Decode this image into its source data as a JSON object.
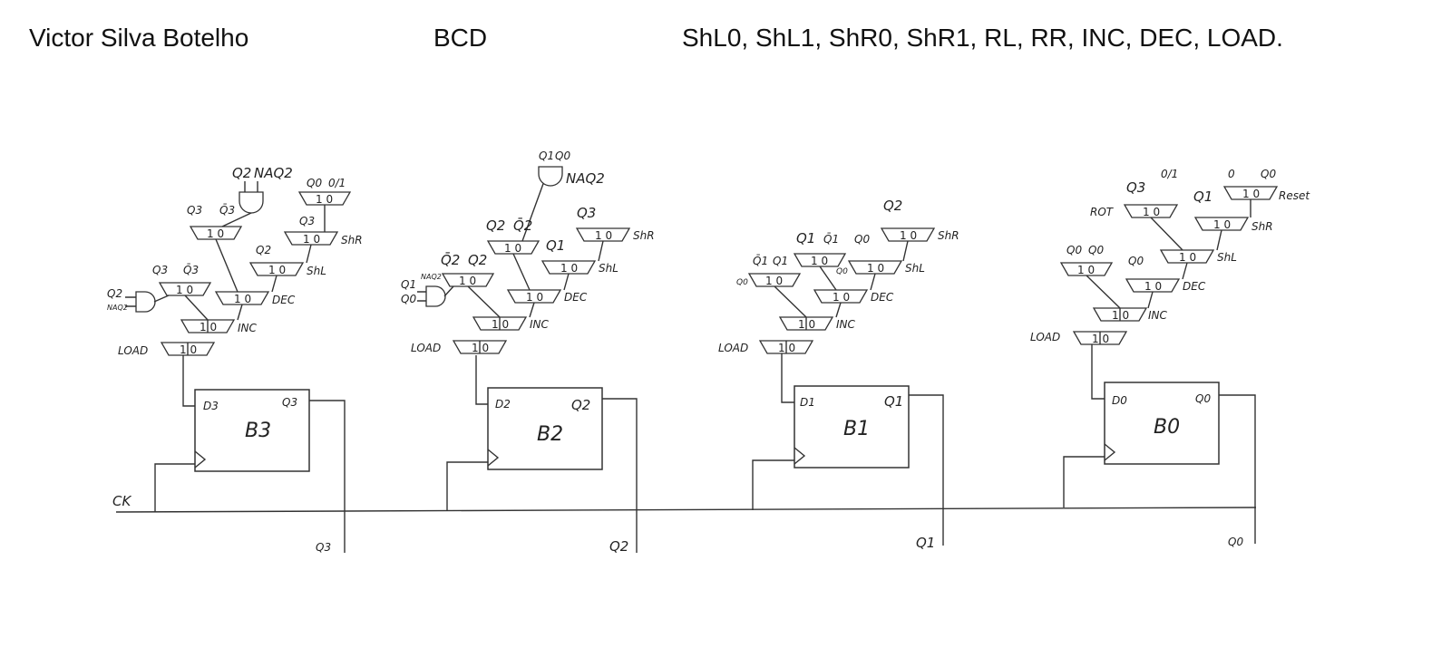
{
  "header": {
    "author": "Victor Silva Botelho",
    "code": "BCD",
    "operations": "ShL0, ShL1, ShR0, ShR1, RL, RR, INC, DEC, LOAD."
  },
  "diagram": {
    "clock_label": "CK",
    "mux_inputs": "1 0",
    "blocks": [
      {
        "name": "B3",
        "d_pin": "D3",
        "q_pin": "Q3",
        "out_label": "Q3",
        "mux_labels": [
          "LOAD",
          "INC",
          "DEC",
          "ShL",
          "ShR"
        ],
        "input_labels": [
          "Q3",
          "Q̄3",
          "Q2",
          "NAQ2",
          "Q3",
          "Q̄3",
          "Q2",
          "NAQ2",
          "Q2",
          "Q3",
          "Q0",
          "0/1",
          "Q3"
        ]
      },
      {
        "name": "B2",
        "d_pin": "D2",
        "q_pin": "Q2",
        "out_label": "Q2",
        "mux_labels": [
          "LOAD",
          "INC",
          "DEC",
          "ShL",
          "ShR"
        ],
        "input_labels": [
          "Q̄2",
          "Q2",
          "Q1",
          "NAQ2",
          "Q0",
          "Q2",
          "Q̄2",
          "Q1",
          "Q1",
          "Q0",
          "NAQ2",
          "Q3"
        ]
      },
      {
        "name": "B1",
        "d_pin": "D1",
        "q_pin": "Q1",
        "out_label": "Q1",
        "mux_labels": [
          "LOAD",
          "INC",
          "DEC",
          "ShL",
          "ShR"
        ],
        "input_labels": [
          "Q̄1",
          "Q1",
          "Q0",
          "Q1",
          "Q̄1",
          "Q0",
          "Q0",
          "Q2"
        ]
      },
      {
        "name": "B0",
        "d_pin": "D0",
        "q_pin": "Q0",
        "out_label": "Q0",
        "mux_labels": [
          "LOAD",
          "INC",
          "DEC",
          "ShL",
          "ShR",
          "ROT",
          "Reset"
        ],
        "input_labels": [
          "Q0",
          "Q0",
          "Q0",
          "Q3",
          "0/1",
          "Q1",
          "0",
          "Q0"
        ]
      }
    ]
  }
}
